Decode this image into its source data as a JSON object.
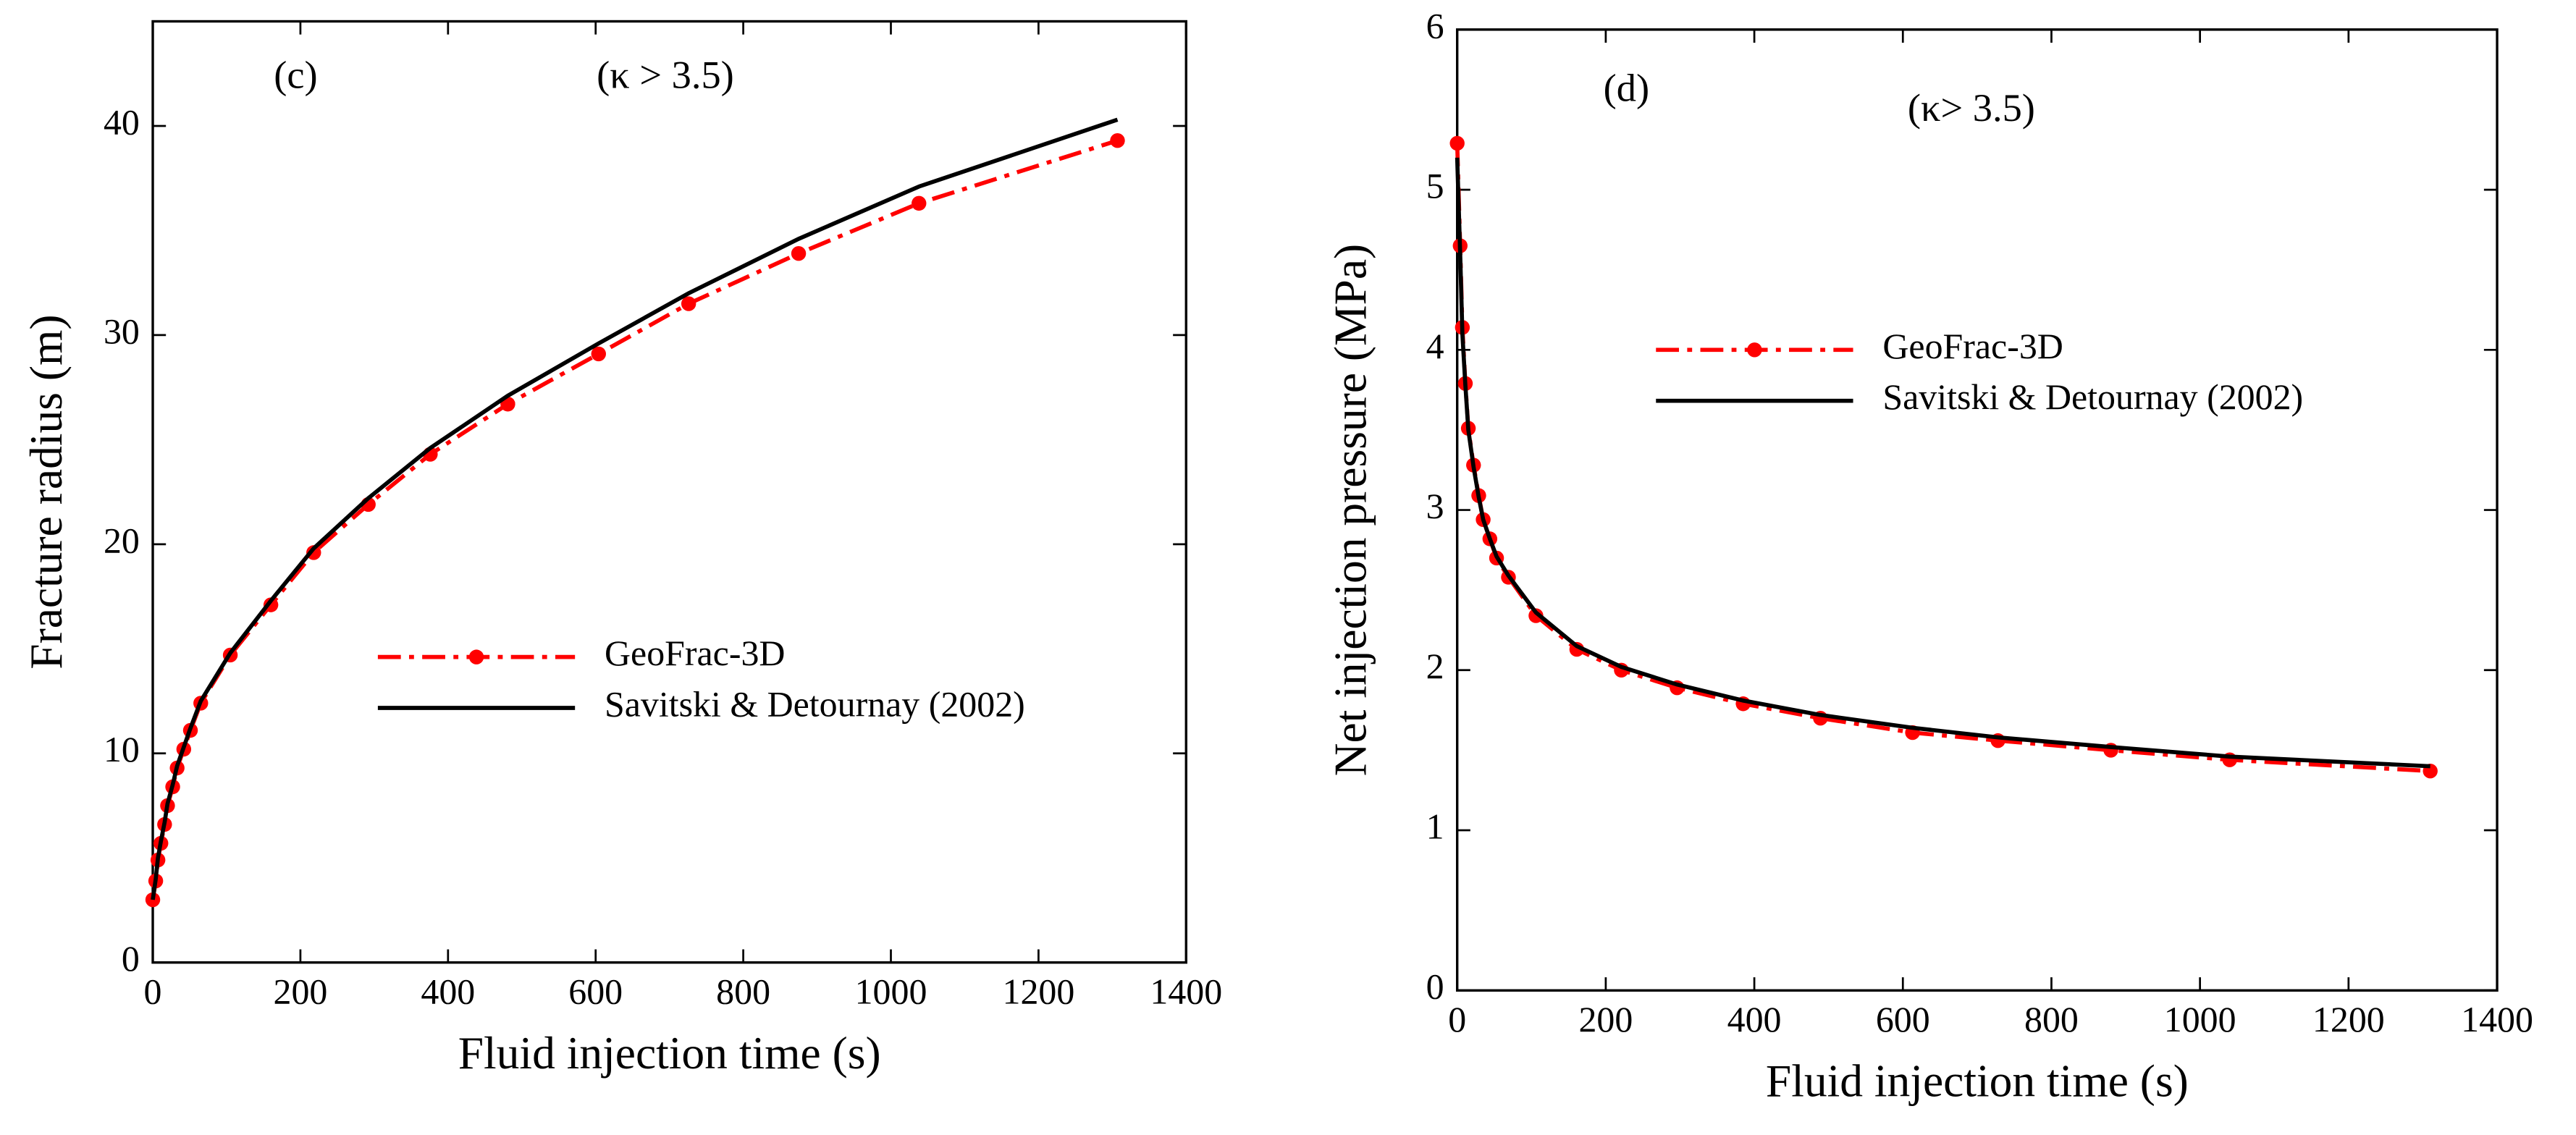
{
  "chart_data": [
    {
      "type": "line",
      "xlabel": "Fluid injection time (s)",
      "ylabel": "Fracture radius (m)",
      "annotations": [
        "(c)",
        "(κ > 3.5)"
      ],
      "xlim": [
        0,
        1400
      ],
      "xticks": [
        0,
        200,
        400,
        600,
        800,
        1000,
        1200,
        1400
      ],
      "ylim": [
        0,
        45
      ],
      "yticks": [
        0,
        10,
        20,
        30,
        40
      ],
      "series": [
        {
          "name": "GeoFrac-3D",
          "color": "#ff0000",
          "markers": true,
          "dash": "dashdot",
          "x": [
            0,
            4,
            7,
            11,
            16,
            20,
            27,
            33,
            42,
            51,
            65,
            105,
            160,
            218,
            292,
            376,
            481,
            604,
            726,
            875,
            1038,
            1307
          ],
          "values": [
            3.0,
            3.9,
            4.9,
            5.7,
            6.6,
            7.5,
            8.4,
            9.3,
            10.2,
            11.1,
            12.4,
            14.7,
            17.1,
            19.6,
            21.9,
            24.3,
            26.7,
            29.1,
            31.5,
            33.9,
            36.3,
            39.3
          ]
        },
        {
          "name": "Savitski & Detournay (2002)",
          "color": "#000000",
          "markers": false,
          "dash": "solid",
          "x": [
            0,
            4,
            7,
            11,
            16,
            20,
            27,
            33,
            42,
            51,
            65,
            105,
            160,
            218,
            292,
            376,
            481,
            604,
            726,
            875,
            1038,
            1307
          ],
          "values": [
            3.0,
            4.0,
            5.0,
            5.8,
            6.7,
            7.6,
            8.5,
            9.4,
            10.3,
            11.2,
            12.5,
            14.8,
            17.3,
            19.8,
            22.2,
            24.6,
            27.1,
            29.6,
            32.0,
            34.6,
            37.1,
            40.3
          ]
        }
      ]
    },
    {
      "type": "line",
      "xlabel": "Fluid injection time (s)",
      "ylabel": "Net injection pressure (MPa)",
      "annotations": [
        "(d)",
        "(κ> 3.5)"
      ],
      "xlim": [
        0,
        1400
      ],
      "xticks": [
        0,
        200,
        400,
        600,
        800,
        1000,
        1200,
        1400
      ],
      "ylim": [
        0,
        6
      ],
      "yticks": [
        0,
        1,
        2,
        3,
        4,
        5,
        6
      ],
      "series": [
        {
          "name": "GeoFrac-3D",
          "color": "#ff0000",
          "markers": true,
          "dash": "dashdot",
          "x": [
            0,
            4,
            7,
            11,
            15,
            22,
            29,
            35,
            44,
            53,
            69,
            106,
            161,
            221,
            296,
            385,
            489,
            613,
            728,
            880,
            1040,
            1310
          ],
          "values": [
            5.29,
            4.65,
            4.14,
            3.79,
            3.51,
            3.28,
            3.09,
            2.94,
            2.82,
            2.7,
            2.58,
            2.34,
            2.13,
            2.0,
            1.89,
            1.79,
            1.7,
            1.61,
            1.56,
            1.5,
            1.44,
            1.37
          ]
        },
        {
          "name": "Savitski & Detournay (2002)",
          "color": "#000000",
          "markers": false,
          "dash": "solid",
          "x": [
            0,
            4,
            7,
            11,
            15,
            22,
            29,
            35,
            44,
            53,
            69,
            106,
            161,
            221,
            296,
            385,
            489,
            613,
            728,
            880,
            1040,
            1310
          ],
          "values": [
            5.2,
            4.6,
            4.1,
            3.78,
            3.5,
            3.27,
            3.08,
            2.94,
            2.82,
            2.71,
            2.59,
            2.36,
            2.15,
            2.02,
            1.91,
            1.81,
            1.72,
            1.64,
            1.58,
            1.52,
            1.46,
            1.4
          ]
        }
      ]
    }
  ]
}
